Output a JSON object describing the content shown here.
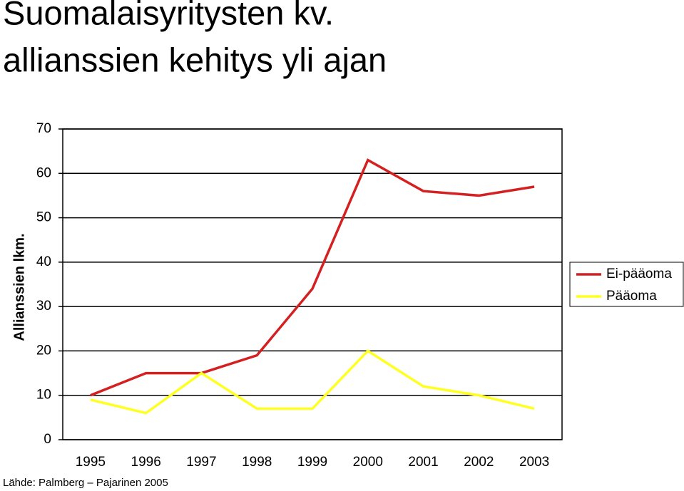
{
  "chart_data": {
    "type": "line",
    "title": [
      "Suomalaisyritysten kv.",
      "allianssien kehitys yli ajan"
    ],
    "y_label": "Allianssien lkm.",
    "source": "Lähde: Palmberg – Pajarinen 2005",
    "categories": [
      "1995",
      "1996",
      "1997",
      "1998",
      "1999",
      "2000",
      "2001",
      "2002",
      "2003"
    ],
    "series": [
      {
        "name": "Ei-pääoma",
        "color": "#d42020",
        "values": [
          10,
          15,
          15,
          19,
          34,
          63,
          56,
          55,
          57
        ]
      },
      {
        "name": "Pääoma",
        "color": "#ffff20",
        "values": [
          9,
          6,
          15,
          7,
          7,
          20,
          12,
          10,
          7
        ]
      }
    ],
    "ylim": [
      0,
      70
    ],
    "yticks": [
      0,
      10,
      20,
      30,
      40,
      50,
      60,
      70
    ],
    "grid": true,
    "legend": "right"
  }
}
